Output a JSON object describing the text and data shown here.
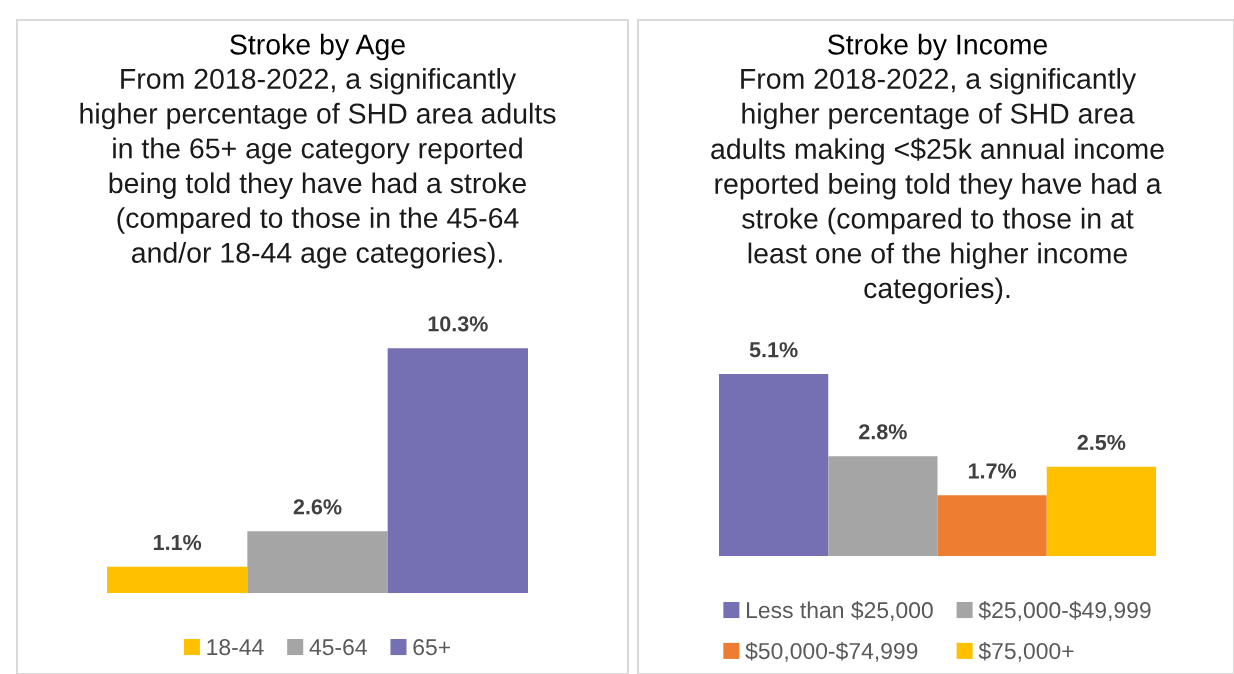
{
  "chart_data": [
    {
      "type": "bar",
      "title": "Stroke by Age",
      "subtitle": "From 2018-2022, a significantly\nhigher percentage of SHD area adults\nin the 65+ age category reported\nbeing told they have had a stroke\n(compared to those in the 45-64\nand/or 18-44 age categories).",
      "categories": [
        null
      ],
      "series": [
        {
          "name": "18-44",
          "color": "#ffc000",
          "values": [
            1.1
          ],
          "value_labels": [
            "1.1%"
          ]
        },
        {
          "name": "45-64",
          "color": "#a5a5a5",
          "values": [
            2.6
          ],
          "value_labels": [
            "2.6%"
          ]
        },
        {
          "name": "65+",
          "color": "#7570b3",
          "values": [
            10.3
          ],
          "value_labels": [
            "10.3%"
          ]
        }
      ],
      "tick_labels": false,
      "legend": "bottom"
    },
    {
      "type": "bar",
      "title": "Stroke by Income",
      "subtitle": "From 2018-2022, a significantly\nhigher percentage of SHD area\nadults making <$25k annual income\nreported being told they have had a\nstroke (compared to those in at\nleast one of the higher income\ncategories).",
      "categories": [
        null
      ],
      "series": [
        {
          "name": "Less than $25,000",
          "color": "#7570b3",
          "values": [
            5.1
          ],
          "value_labels": [
            "5.1%"
          ]
        },
        {
          "name": "$25,000-$49,999",
          "color": "#a5a5a5",
          "values": [
            2.8
          ],
          "value_labels": [
            "2.8%"
          ]
        },
        {
          "name": "$50,000-$74,999",
          "color": "#ed7d31",
          "values": [
            1.7
          ],
          "value_labels": [
            "1.7%"
          ]
        },
        {
          "name": "$75,000+",
          "color": "#ffc000",
          "values": [
            2.5
          ],
          "value_labels": [
            "2.5%"
          ]
        }
      ],
      "tick_labels": false,
      "legend": "bottom"
    }
  ]
}
